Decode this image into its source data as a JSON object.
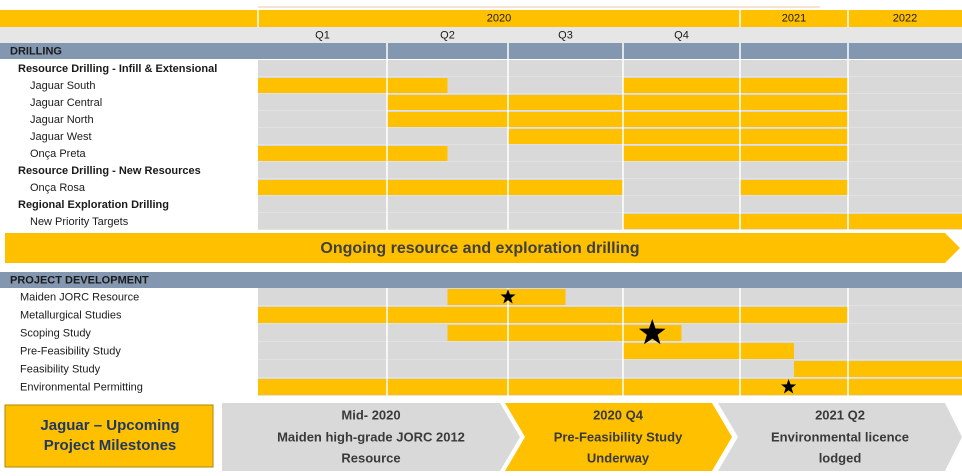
{
  "header": {
    "years": [
      "2020",
      "2021",
      "2022"
    ],
    "quarters": [
      "Q1",
      "Q2",
      "Q3",
      "Q4"
    ]
  },
  "drilling": {
    "title": "DRILLING",
    "groups": [
      {
        "title": "Resource Drilling - Infill & Extensional",
        "items": [
          {
            "label": "Jaguar South",
            "bars": [
              [
                0,
                1.5
              ],
              [
                3,
                5
              ]
            ]
          },
          {
            "label": "Jaguar Central",
            "bars": [
              [
                1,
                5
              ]
            ]
          },
          {
            "label": "Jaguar North",
            "bars": [
              [
                1,
                5
              ]
            ]
          },
          {
            "label": "Jaguar West",
            "bars": [
              [
                2,
                5
              ]
            ]
          },
          {
            "label": "Onça Preta",
            "bars": [
              [
                0,
                1.5
              ],
              [
                3,
                5
              ]
            ]
          }
        ]
      },
      {
        "title": "Resource Drilling - New Resources",
        "items": [
          {
            "label": "Onça Rosa",
            "bars": [
              [
                0,
                3
              ],
              [
                4,
                5
              ]
            ]
          }
        ]
      },
      {
        "title": "Regional Exploration Drilling",
        "items": [
          {
            "label": "New Priority Targets",
            "bars": [
              [
                3,
                6
              ]
            ]
          }
        ]
      }
    ]
  },
  "banner": "Ongoing resource and exploration drilling",
  "development": {
    "title": "PROJECT DEVELOPMENT",
    "items": [
      {
        "label": "Maiden JORC Resource",
        "bars": [
          [
            1.5,
            2.5
          ]
        ],
        "milestone": 2.0
      },
      {
        "label": "Metallurgical Studies",
        "bars": [
          [
            0,
            5
          ]
        ]
      },
      {
        "label": "Scoping Study",
        "bars": [
          [
            1.5,
            3.5
          ]
        ],
        "milestone": 3.25
      },
      {
        "label": "Pre-Feasibility Study",
        "bars": [
          [
            3,
            4.5
          ]
        ]
      },
      {
        "label": "Feasibility Study",
        "bars": [
          [
            4.5,
            6
          ]
        ]
      },
      {
        "label": "Environmental Permitting",
        "bars": [
          [
            0,
            6
          ]
        ],
        "milestone": 4.45
      }
    ]
  },
  "milestones": {
    "title": [
      "Jaguar – Upcoming",
      "Project Milestones"
    ],
    "items": [
      {
        "heading": "Mid- 2020",
        "text": [
          "Maiden high-grade JORC 2012",
          "Resource"
        ]
      },
      {
        "heading": "2020 Q4",
        "text": [
          "Pre-Feasibility Study",
          "Underway"
        ]
      },
      {
        "heading": "2021 Q2",
        "text": [
          "Environmental licence",
          "lodged"
        ]
      }
    ]
  }
}
